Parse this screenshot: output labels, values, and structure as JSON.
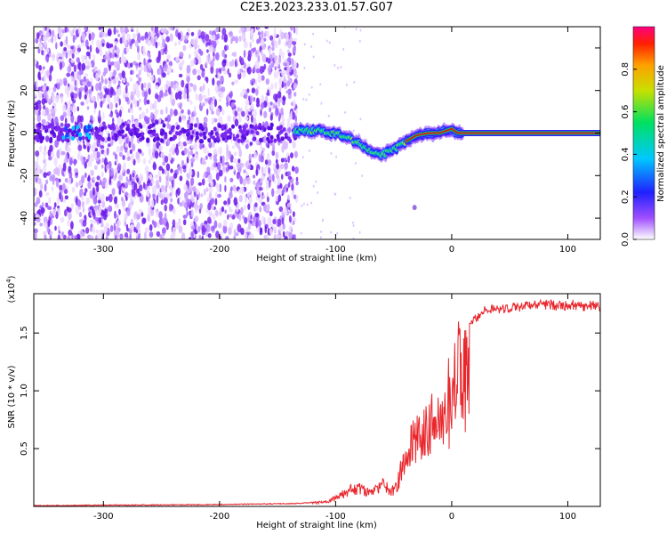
{
  "title": "C2E3.2023.233.01.57.G07",
  "colors": {
    "snr_line": "#e8262c",
    "core_line": "#cc2222",
    "frame": "#000000"
  },
  "chart_data": [
    {
      "type": "heatmap",
      "xlabel": "Height of straight line (km)",
      "ylabel": "Frequency (Hz)",
      "xlim": [
        -360,
        128
      ],
      "ylim": [
        -50,
        50
      ],
      "xticks": [
        -300,
        -200,
        -100,
        0,
        100
      ],
      "yticks": [
        -40,
        -20,
        0,
        20,
        40
      ],
      "colorbar": {
        "label": "Normalized spectral amplitude",
        "range": [
          0.0,
          1.0
        ],
        "ticks": [
          "0.0",
          "0.2",
          "0.4",
          "0.6",
          "0.8"
        ]
      },
      "ridge": {
        "x": [
          -360,
          -330,
          -300,
          -260,
          -200,
          -150,
          -130,
          -110,
          -90,
          -80,
          -70,
          -60,
          -50,
          -40,
          -30,
          -20,
          -10,
          0,
          5,
          20,
          60,
          128
        ],
        "y": [
          0,
          0,
          0,
          0,
          0,
          0,
          1,
          1,
          -2,
          -5,
          -8,
          -10,
          -8,
          -4,
          -1,
          0,
          0,
          2,
          0,
          0,
          0,
          0
        ]
      }
    },
    {
      "type": "line",
      "xlabel": "Height of straight line (km)",
      "ylabel": "SNR (10 * v/v)",
      "y_multiplier": "(x10",
      "y_multiplier_exp": "4",
      "y_multiplier_close": ")",
      "xlim": [
        -360,
        128
      ],
      "ylim": [
        0,
        1.84
      ],
      "xticks": [
        -300,
        -200,
        -100,
        0,
        100
      ],
      "yticks": [
        0.5,
        1.0,
        1.5
      ],
      "ytick_labels": [
        "0.5",
        "1.0",
        "1.5"
      ],
      "series": [
        {
          "x": [
            -360,
            -300,
            -200,
            -130,
            -110,
            -100,
            -90,
            -80,
            -70,
            -60,
            -50,
            -45,
            -40,
            -35,
            -30,
            -25,
            -20,
            -15,
            -10,
            -5,
            0,
            5,
            10,
            15,
            20,
            25,
            30,
            40,
            50,
            60,
            80,
            100,
            128
          ],
          "y": [
            0.01,
            0.015,
            0.02,
            0.03,
            0.05,
            0.1,
            0.18,
            0.22,
            0.15,
            0.25,
            0.18,
            0.35,
            0.6,
            0.75,
            0.8,
            0.9,
            0.95,
            1.0,
            1.05,
            1.2,
            1.4,
            1.65,
            1.68,
            1.6,
            1.65,
            1.7,
            1.72,
            1.74,
            1.75,
            1.76,
            1.77,
            1.77,
            1.76
          ]
        }
      ]
    }
  ]
}
